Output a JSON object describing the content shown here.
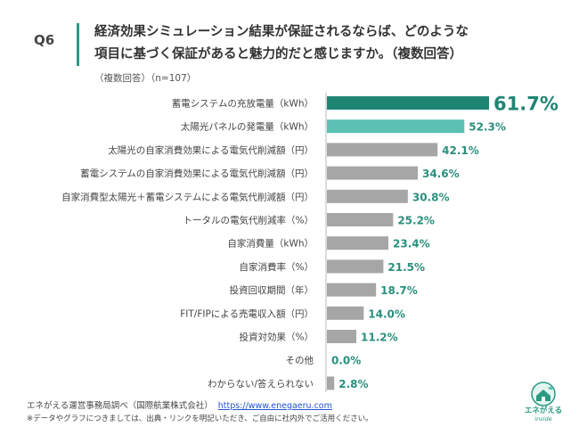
{
  "question": {
    "number": "Q6",
    "title_line1": "経済効果シミュレーション結果が保証されるならば、どのような",
    "title_line2": "項目に基づく保証があると魅力的だと感じますか。（複数回答）",
    "subtitle": "（複数回答）（n=107）"
  },
  "chart_data": {
    "type": "bar",
    "orientation": "horizontal",
    "title": "経済効果シミュレーション結果が保証されるならば、どのような項目に基づく保証があると魅力的だと感じますか。（複数回答）",
    "unit": "%",
    "xlim": [
      0,
      61.7
    ],
    "categories": [
      "蓄電システムの充放電量（kWh）",
      "太陽光パネルの発電量（kWh）",
      "太陽光の自家消費効果による電気代削減額（円）",
      "蓄電システムの自家消費効果による電気代削減額（円）",
      "自家消費型太陽光＋蓄電システムによる電気代削減額（円）",
      "トータルの電気代削減率（%）",
      "自家消費量（kWh）",
      "自家消費率（%）",
      "投資回収期間（年）",
      "FIT/FIPによる売電収入額（円）",
      "投資対効果（%）",
      "その他",
      "わからない/答えられない"
    ],
    "values": [
      61.7,
      52.3,
      42.1,
      34.6,
      30.8,
      25.2,
      23.4,
      21.5,
      18.7,
      14.0,
      11.2,
      0.0,
      2.8
    ],
    "value_labels": [
      "61.7%",
      "52.3%",
      "42.1%",
      "34.6%",
      "30.8%",
      "25.2%",
      "23.4%",
      "21.5%",
      "18.7%",
      "14.0%",
      "11.2%",
      "0.0%",
      "2.8%"
    ],
    "bar_colors": [
      "#1f8573",
      "#5cc1b3",
      "#a6a6a6",
      "#a6a6a6",
      "#a6a6a6",
      "#a6a6a6",
      "#a6a6a6",
      "#a6a6a6",
      "#a6a6a6",
      "#a6a6a6",
      "#a6a6a6",
      "#a6a6a6",
      "#a6a6a6"
    ]
  },
  "footer": {
    "source": "エネがえる運営事務局調べ（国際航業株式会社）",
    "link": "https://www.enegaeru.com",
    "note": "※データやグラフにつきましては、出典・リンクを明記いただき、ご自由に社内外でご活用ください。"
  },
  "logo": {
    "name": "エネがえる",
    "sub": "inside"
  },
  "colors": {
    "accent": "#2a9a82",
    "highlight": "#1f8573",
    "second": "#5cc1b3",
    "bar_gray": "#a6a6a6"
  }
}
